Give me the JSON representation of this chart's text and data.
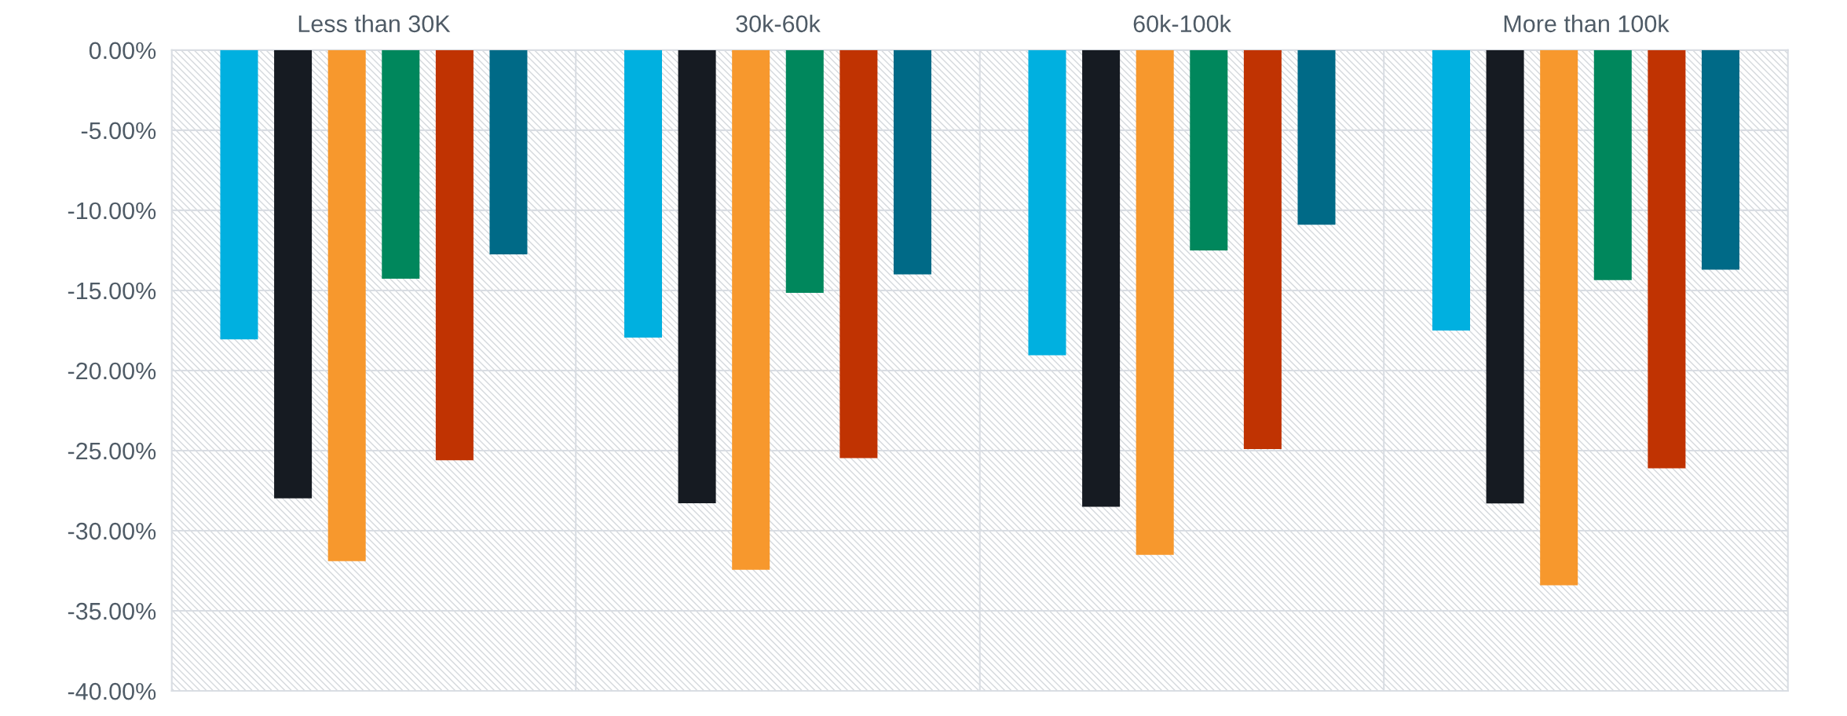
{
  "chart_data": {
    "type": "bar",
    "categories": [
      "Less than 30K",
      "30k-60k",
      "60k-100k",
      "More than 100k"
    ],
    "series": [
      {
        "color": "#00b0e0",
        "values": [
          -18.05,
          -17.94,
          -19.05,
          -17.5
        ]
      },
      {
        "color": "#161b22",
        "values": [
          -27.98,
          -28.28,
          -28.5,
          -28.3
        ]
      },
      {
        "color": "#f7982d",
        "values": [
          -31.9,
          -32.44,
          -31.5,
          -33.4
        ]
      },
      {
        "color": "#00875c",
        "values": [
          -14.27,
          -15.15,
          -12.5,
          -14.35
        ]
      },
      {
        "color": "#c03302",
        "values": [
          -25.6,
          -25.46,
          -24.9,
          -26.1
        ]
      },
      {
        "color": "#006a87",
        "values": [
          -12.75,
          -14.0,
          -10.9,
          -13.7
        ]
      }
    ],
    "ylim": [
      -40,
      0
    ],
    "yticks": [
      {
        "value": 0,
        "label": "0.00%"
      },
      {
        "value": -5,
        "label": "-5.00%"
      },
      {
        "value": -10,
        "label": "-10.00%"
      },
      {
        "value": -15,
        "label": "-15.00%"
      },
      {
        "value": -20,
        "label": "-20.00%"
      },
      {
        "value": -25,
        "label": "-25.00%"
      },
      {
        "value": -30,
        "label": "-30.00%"
      },
      {
        "value": -35,
        "label": "-35.00%"
      },
      {
        "value": -40,
        "label": "-40.00%"
      }
    ],
    "grid": true
  }
}
